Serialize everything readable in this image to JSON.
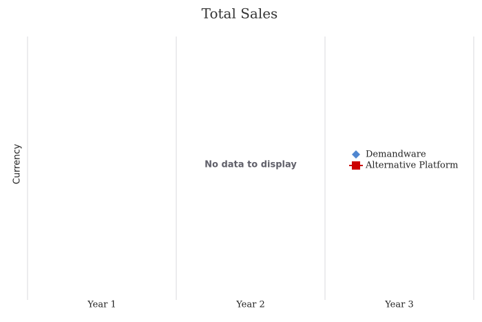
{
  "chart_data": {
    "type": "line",
    "title": "Total Sales",
    "y_label": "Currency",
    "categories": [
      "Year 1",
      "Year 2",
      "Year 3"
    ],
    "series": [
      {
        "name": "Demandware",
        "color": "#4f86d0",
        "marker": "diamond",
        "values": [
          null,
          null,
          null
        ]
      },
      {
        "name": "Alternative Platform",
        "color": "#cc0000",
        "marker": "square",
        "values": [
          null,
          null,
          null
        ]
      }
    ],
    "no_data_message": "No data to display",
    "legend": "right"
  }
}
